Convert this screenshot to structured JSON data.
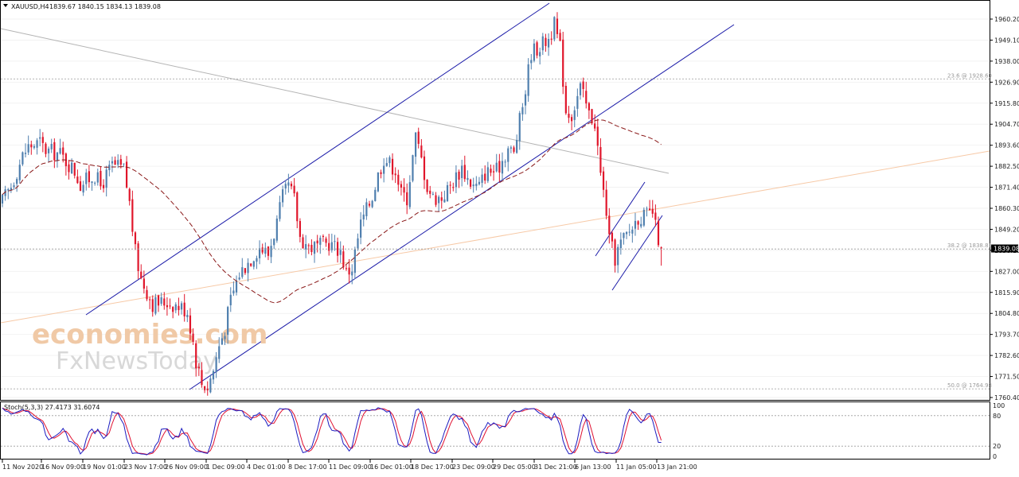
{
  "header": {
    "symbol": "XAUUSD,H4",
    "ohlc": "1839.67 1840.15 1834.13 1839.08"
  },
  "stoch_header": "Stoch(5,3,3) 27.4173 31.6074",
  "watermark": {
    "line1": "economies.com",
    "line2": "FxNewsToday"
  },
  "colors": {
    "bull": "#4f7fae",
    "bear": "#e0162b",
    "channel": "#1a1aa8",
    "ma": "#8b1a1a",
    "trend_gray": "#b4b4b4",
    "trend_orange": "#f7c9a6",
    "stoch_main": "#1c1cc0",
    "stoch_signal": "#e01030"
  },
  "chart_data": [
    {
      "type": "candlestick",
      "symbol": "XAUUSD",
      "timeframe": "H4",
      "ylim": [
        1760.4,
        1965.0
      ],
      "price_axis_ticks": [
        "1960.20",
        "1949.10",
        "1938.00",
        "1926.90",
        "1915.80",
        "1904.70",
        "1893.60",
        "1882.50",
        "1871.40",
        "1860.30",
        "1849.20",
        "1838.10",
        "1827.00",
        "1815.90",
        "1804.80",
        "1793.70",
        "1782.60",
        "1771.50",
        "1760.40"
      ],
      "current_price": "1839.08",
      "time_axis_labels": [
        "11 Nov 2020",
        "16 Nov 09:00",
        "19 Nov 01:00",
        "23 Nov 17:00",
        "26 Nov 09:00",
        "1 Dec 09:00",
        "4 Dec 01:00",
        "8 Dec 17:00",
        "11 Dec 09:00",
        "16 Dec 01:00",
        "18 Dec 17:00",
        "23 Dec 09:00",
        "29 Dec 05:00",
        "31 Dec 21:00",
        "6 Jan 13:00",
        "11 Jan 05:00",
        "13 Jan 21:00"
      ],
      "fib_levels": [
        {
          "label": "23.6 @ 1928.60",
          "price": 1928.6
        },
        {
          "label": "38.2 @ 1838.81",
          "price": 1838.81
        },
        {
          "label": "50.0 @ 1764.98",
          "price": 1764.98
        }
      ],
      "anchors": [
        [
          0,
          1864
        ],
        [
          3,
          1872
        ],
        [
          7,
          1888
        ],
        [
          9,
          1893
        ],
        [
          13,
          1895
        ],
        [
          15,
          1891
        ],
        [
          20,
          1889
        ],
        [
          25,
          1880
        ],
        [
          27,
          1873
        ],
        [
          32,
          1878
        ],
        [
          34,
          1872
        ],
        [
          38,
          1883
        ],
        [
          42,
          1881
        ],
        [
          44,
          1863
        ],
        [
          46,
          1837
        ],
        [
          48,
          1823
        ],
        [
          52,
          1810
        ],
        [
          57,
          1811
        ],
        [
          62,
          1808
        ],
        [
          64,
          1806
        ],
        [
          66,
          1790
        ],
        [
          67,
          1780
        ],
        [
          69,
          1768
        ],
        [
          71,
          1766
        ],
        [
          73,
          1775
        ],
        [
          75,
          1788
        ],
        [
          77,
          1797
        ],
        [
          79,
          1812
        ],
        [
          82,
          1826
        ],
        [
          86,
          1834
        ],
        [
          89,
          1840
        ],
        [
          92,
          1836
        ],
        [
          95,
          1853
        ],
        [
          97,
          1866
        ],
        [
          99,
          1872
        ],
        [
          101,
          1865
        ],
        [
          103,
          1845
        ],
        [
          106,
          1840
        ],
        [
          109,
          1840
        ],
        [
          113,
          1842
        ],
        [
          117,
          1838
        ],
        [
          119,
          1826
        ],
        [
          121,
          1829
        ],
        [
          124,
          1852
        ],
        [
          128,
          1867
        ],
        [
          130,
          1878
        ],
        [
          132,
          1887
        ],
        [
          136,
          1881
        ],
        [
          138,
          1868
        ],
        [
          140,
          1866
        ],
        [
          143,
          1898
        ],
        [
          145,
          1886
        ],
        [
          147,
          1872
        ],
        [
          149,
          1866
        ],
        [
          152,
          1866
        ],
        [
          155,
          1872
        ],
        [
          159,
          1882
        ],
        [
          161,
          1876
        ],
        [
          163,
          1872
        ],
        [
          165,
          1872
        ],
        [
          167,
          1879
        ],
        [
          169,
          1880
        ],
        [
          171,
          1880
        ],
        [
          173,
          1886
        ],
        [
          175,
          1892
        ],
        [
          177,
          1889
        ],
        [
          178,
          1898
        ],
        [
          181,
          1923
        ],
        [
          183,
          1943
        ],
        [
          186,
          1946
        ],
        [
          189,
          1950
        ],
        [
          191,
          1957
        ],
        [
          193,
          1945
        ],
        [
          195,
          1912
        ],
        [
          197,
          1910
        ],
        [
          200,
          1924
        ],
        [
          203,
          1910
        ],
        [
          205,
          1906
        ],
        [
          207,
          1878
        ],
        [
          209,
          1859
        ],
        [
          210,
          1843
        ],
        [
          212,
          1834
        ],
        [
          214,
          1842
        ],
        [
          217,
          1848
        ],
        [
          220,
          1856
        ],
        [
          223,
          1856
        ],
        [
          225,
          1858
        ],
        [
          226,
          1850
        ],
        [
          228,
          1839
        ]
      ],
      "moving_average_period": 50
    },
    {
      "type": "line",
      "indicator": "Stochastic Oscillator",
      "params": "5,3,3",
      "ylim": [
        0,
        100
      ],
      "levels": [
        80,
        20
      ],
      "axis_ticks": [
        "100",
        "80",
        "20",
        "0"
      ],
      "series": [
        {
          "name": "Main",
          "value": 27.4173
        },
        {
          "name": "Signal",
          "value": 31.6074
        }
      ]
    }
  ]
}
